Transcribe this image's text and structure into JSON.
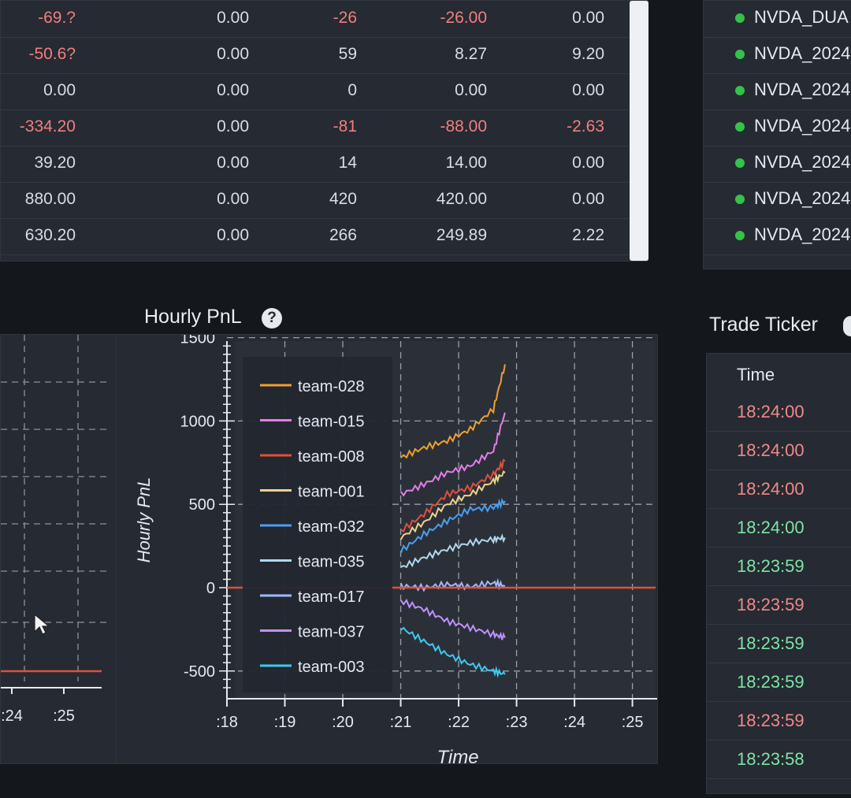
{
  "positions": {
    "rows": [
      [
        "-69.?",
        "0.00",
        "-26",
        "-26.00",
        "0.00"
      ],
      [
        "-50.6?",
        "0.00",
        "59",
        "8.27",
        "9.20"
      ],
      [
        "0.00",
        "0.00",
        "0",
        "0.00",
        "0.00"
      ],
      [
        "-334.20",
        "0.00",
        "-81",
        "-88.00",
        "-2.63"
      ],
      [
        "39.20",
        "0.00",
        "14",
        "14.00",
        "0.00"
      ],
      [
        "880.00",
        "0.00",
        "420",
        "420.00",
        "0.00"
      ],
      [
        "630.20",
        "0.00",
        "266",
        "249.89",
        "2.22"
      ]
    ]
  },
  "symbols": {
    "items": [
      "NVDA_DUA",
      "NVDA_2024",
      "NVDA_2024",
      "NVDA_2024",
      "NVDA_2024",
      "NVDA_2024",
      "NVDA_2024"
    ]
  },
  "hourly_pnl": {
    "title": "Hourly PnL",
    "help_glyph": "?"
  },
  "trade_ticker": {
    "title": "Trade Ticker",
    "column_header": "Time",
    "rows": [
      {
        "time": "18:24:00",
        "side": "red"
      },
      {
        "time": "18:24:00",
        "side": "red"
      },
      {
        "time": "18:24:00",
        "side": "red"
      },
      {
        "time": "18:24:00",
        "side": "green"
      },
      {
        "time": "18:23:59",
        "side": "green"
      },
      {
        "time": "18:23:59",
        "side": "red"
      },
      {
        "time": "18:23:59",
        "side": "green"
      },
      {
        "time": "18:23:59",
        "side": "green"
      },
      {
        "time": "18:23:59",
        "side": "red"
      },
      {
        "time": "18:23:58",
        "side": "green"
      }
    ]
  },
  "left_chart": {
    "x_ticks": [
      ":24",
      ":25"
    ],
    "zero_line_color": "#e0503a"
  },
  "chart_data": {
    "type": "line",
    "title": "",
    "xlabel": "Time",
    "ylabel": "Hourly PnL",
    "x_ticks": [
      ":18",
      ":19",
      ":20",
      ":21",
      ":22",
      ":23",
      ":24",
      ":25"
    ],
    "y_ticks": [
      1500,
      1000,
      500,
      0,
      -500
    ],
    "ylim": [
      -600,
      1500
    ],
    "grid": true,
    "legend_position": "left",
    "legend": [
      "team-028",
      "team-015",
      "team-008",
      "team-001",
      "team-032",
      "team-035",
      "team-017",
      "team-037",
      "team-003"
    ],
    "series": [
      {
        "name": "team-028",
        "color": "#f0a030",
        "x": [
          21.0,
          21.4,
          21.8,
          22.2,
          22.6,
          22.8
        ],
        "values": [
          780,
          840,
          880,
          950,
          1070,
          1340
        ]
      },
      {
        "name": "team-015",
        "color": "#e27ee8",
        "x": [
          21.0,
          21.4,
          21.8,
          22.2,
          22.6,
          22.8
        ],
        "values": [
          560,
          620,
          690,
          730,
          820,
          1050
        ]
      },
      {
        "name": "team-008",
        "color": "#e0503a",
        "x": [
          21.0,
          21.4,
          21.8,
          22.2,
          22.6,
          22.8
        ],
        "values": [
          340,
          440,
          560,
          600,
          680,
          760
        ]
      },
      {
        "name": "team-001",
        "color": "#f0d090",
        "x": [
          21.0,
          21.4,
          21.8,
          22.2,
          22.6,
          22.8
        ],
        "values": [
          300,
          390,
          500,
          560,
          640,
          690
        ]
      },
      {
        "name": "team-032",
        "color": "#4a9ff0",
        "x": [
          21.0,
          21.4,
          21.8,
          22.2,
          22.6,
          22.8
        ],
        "values": [
          220,
          320,
          400,
          470,
          480,
          520
        ]
      },
      {
        "name": "team-035",
        "color": "#b0d8f0",
        "x": [
          21.0,
          21.4,
          21.8,
          22.2,
          22.6,
          22.8
        ],
        "values": [
          120,
          180,
          230,
          270,
          290,
          300
        ]
      },
      {
        "name": "team-017",
        "color": "#a0b8ff",
        "x": [
          21.0,
          21.4,
          21.8,
          22.2,
          22.6,
          22.8
        ],
        "values": [
          10,
          0,
          20,
          5,
          30,
          10
        ]
      },
      {
        "name": "team-037",
        "color": "#c090ff",
        "x": [
          21.0,
          21.4,
          21.8,
          22.2,
          22.6,
          22.8
        ],
        "values": [
          -80,
          -130,
          -200,
          -240,
          -280,
          -300
        ]
      },
      {
        "name": "team-003",
        "color": "#40c8f0",
        "x": [
          21.0,
          21.4,
          21.8,
          22.2,
          22.6,
          22.8
        ],
        "values": [
          -240,
          -320,
          -400,
          -460,
          -500,
          -520
        ]
      },
      {
        "name": "",
        "color": "#e0503a",
        "x": [
          18.0,
          25.4
        ],
        "values": [
          0,
          0
        ]
      }
    ]
  }
}
